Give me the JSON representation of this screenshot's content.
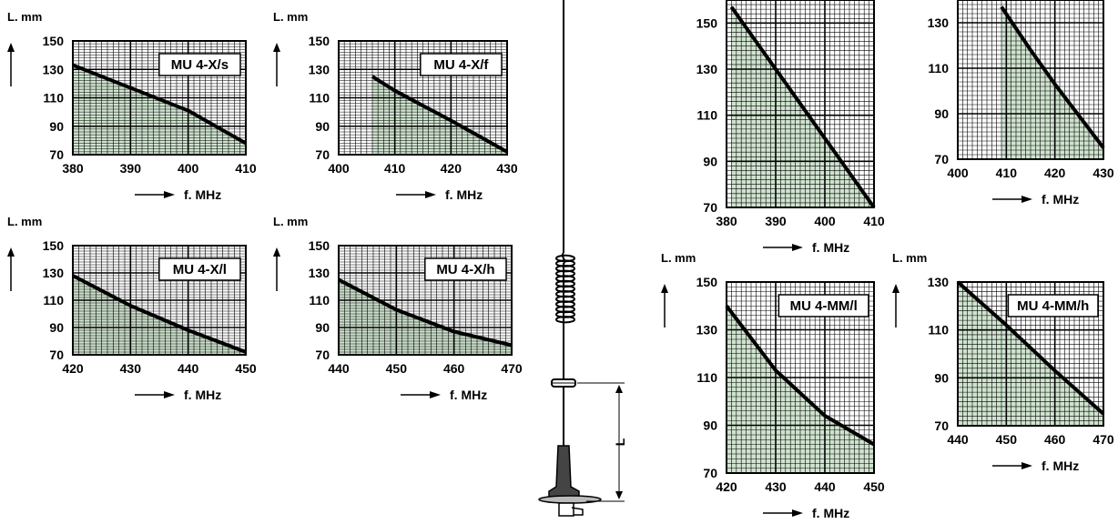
{
  "colors": {
    "fill": "#cfe3cf",
    "grid": "#000000",
    "curve": "#000000",
    "background": "#ffffff"
  },
  "antenna": {
    "dimension_label": "L"
  },
  "chart_data": [
    {
      "type": "line",
      "title": "MU 4-X/s",
      "ylabel": "L. mm",
      "xlabel": "f. MHz",
      "xlim": [
        380,
        410
      ],
      "ylim": [
        70,
        150
      ],
      "x_ticks": [
        380,
        390,
        400,
        410
      ],
      "y_ticks": [
        70,
        90,
        110,
        130,
        150
      ],
      "series": [
        {
          "x": [
            380,
            390,
            400,
            410
          ],
          "y": [
            133,
            117,
            101,
            78
          ]
        }
      ]
    },
    {
      "type": "line",
      "title": "MU 4-X/f",
      "ylabel": "L. mm",
      "xlabel": "f. MHz",
      "xlim": [
        400,
        430
      ],
      "ylim": [
        70,
        150
      ],
      "x_ticks": [
        400,
        410,
        420,
        430
      ],
      "y_ticks": [
        70,
        90,
        110,
        130,
        150
      ],
      "series": [
        {
          "x": [
            406,
            410,
            420,
            430
          ],
          "y": [
            125,
            115,
            94,
            72
          ]
        }
      ]
    },
    {
      "type": "line",
      "title": "MU 4-X/l",
      "ylabel": "L. mm",
      "xlabel": "f. MHz",
      "xlim": [
        420,
        450
      ],
      "ylim": [
        70,
        150
      ],
      "x_ticks": [
        420,
        430,
        440,
        450
      ],
      "y_ticks": [
        70,
        90,
        110,
        130,
        150
      ],
      "series": [
        {
          "x": [
            420,
            430,
            440,
            450
          ],
          "y": [
            128,
            106,
            88,
            72
          ]
        }
      ]
    },
    {
      "type": "line",
      "title": "MU 4-X/h",
      "ylabel": "L. mm",
      "xlabel": "f. MHz",
      "xlim": [
        440,
        470
      ],
      "ylim": [
        70,
        150
      ],
      "x_ticks": [
        440,
        450,
        460,
        470
      ],
      "y_ticks": [
        70,
        90,
        110,
        130,
        150
      ],
      "series": [
        {
          "x": [
            440,
            450,
            460,
            470
          ],
          "y": [
            125,
            103,
            87,
            77
          ]
        }
      ]
    },
    {
      "type": "line",
      "title": "",
      "ylabel": "",
      "xlabel": "f. MHz",
      "xlim": [
        380,
        410
      ],
      "ylim": [
        70,
        160
      ],
      "x_ticks": [
        380,
        390,
        400,
        410
      ],
      "y_ticks": [
        70,
        90,
        110,
        130,
        150
      ],
      "series": [
        {
          "x": [
            381,
            390,
            400,
            410
          ],
          "y": [
            157,
            130,
            100,
            70
          ]
        }
      ]
    },
    {
      "type": "line",
      "title": "",
      "ylabel": "",
      "xlabel": "f. MHz",
      "xlim": [
        400,
        430
      ],
      "ylim": [
        70,
        140
      ],
      "x_ticks": [
        400,
        410,
        420,
        430
      ],
      "y_ticks": [
        70,
        90,
        110,
        130
      ],
      "series": [
        {
          "x": [
            409,
            415,
            420,
            430
          ],
          "y": [
            137,
            118,
            103,
            75
          ]
        }
      ]
    },
    {
      "type": "line",
      "title": "MU 4-MM/l",
      "ylabel": "L. mm",
      "xlabel": "f. MHz",
      "xlim": [
        420,
        450
      ],
      "ylim": [
        70,
        150
      ],
      "x_ticks": [
        420,
        430,
        440,
        450
      ],
      "y_ticks": [
        70,
        90,
        110,
        130,
        150
      ],
      "series": [
        {
          "x": [
            420,
            430,
            440,
            450
          ],
          "y": [
            140,
            113,
            94,
            82
          ]
        }
      ]
    },
    {
      "type": "line",
      "title": "MU 4-MM/h",
      "ylabel": "L. mm",
      "xlabel": "f. MHz",
      "xlim": [
        440,
        470
      ],
      "ylim": [
        70,
        130
      ],
      "x_ticks": [
        440,
        450,
        460,
        470
      ],
      "y_ticks": [
        70,
        90,
        110,
        130
      ],
      "series": [
        {
          "x": [
            440,
            450,
            460,
            470
          ],
          "y": [
            130,
            112,
            93,
            75
          ]
        }
      ]
    }
  ]
}
